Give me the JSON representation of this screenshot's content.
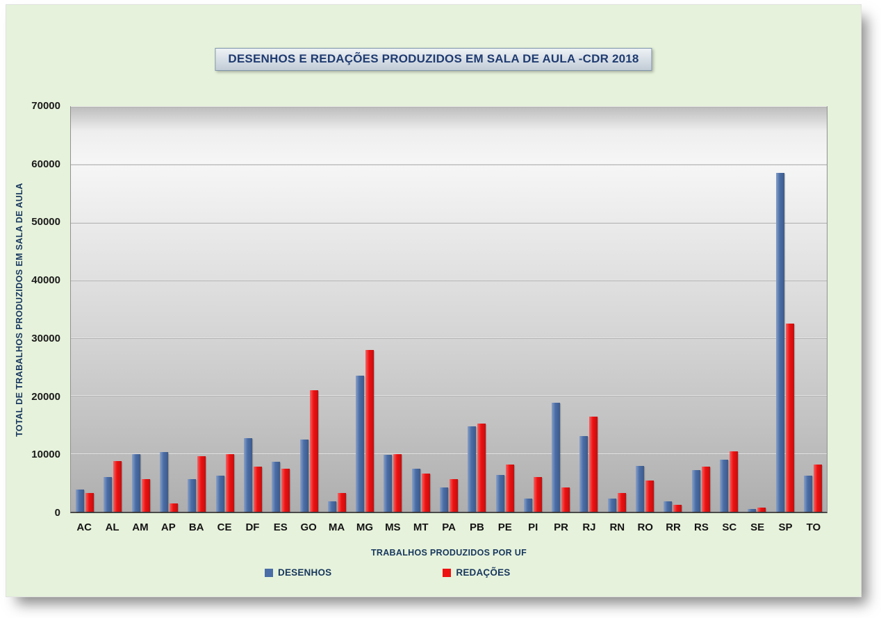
{
  "colors": {
    "canvas_background": "#e6f2db",
    "series_blue": "#4a6da7",
    "series_red": "#ee1111",
    "title_text": "#1f3b70",
    "axis_title_text": "#17375e"
  },
  "chart_data": {
    "type": "bar",
    "title": "DESENHOS E REDAÇÕES PRODUZIDOS EM SALA DE AULA -CDR 2018",
    "xlabel": "TRABALHOS PRODUZIDOS POR UF",
    "ylabel": "TOTAL DE TRABALHOS PRODUZIDOS EM SALA DE AULA",
    "ylim": [
      0,
      70000
    ],
    "ytick_step": 10000,
    "yticks": [
      0,
      10000,
      20000,
      30000,
      40000,
      50000,
      60000,
      70000
    ],
    "grid": true,
    "legend_position": "bottom",
    "categories": [
      "AC",
      "AL",
      "AM",
      "AP",
      "BA",
      "CE",
      "DF",
      "ES",
      "GO",
      "MA",
      "MG",
      "MS",
      "MT",
      "PA",
      "PB",
      "PE",
      "PI",
      "PR",
      "RJ",
      "RN",
      "RO",
      "RR",
      "RS",
      "SC",
      "SE",
      "SP",
      "TO"
    ],
    "series": [
      {
        "name": "DESENHOS",
        "color": "#4a6da7",
        "values": [
          3800,
          6000,
          10000,
          10300,
          5700,
          6300,
          12700,
          8700,
          12500,
          1800,
          23500,
          9800,
          7400,
          4200,
          14800,
          6400,
          2300,
          18800,
          13100,
          2300,
          7900,
          1800,
          7200,
          9000,
          500,
          58600,
          6300
        ]
      },
      {
        "name": "REDAÇÕES",
        "color": "#ee1111",
        "values": [
          3300,
          8800,
          5600,
          1400,
          9600,
          10000,
          7800,
          7500,
          21000,
          3300,
          28000,
          10000,
          6600,
          5600,
          15300,
          8200,
          6000,
          4200,
          16500,
          3200,
          5400,
          1200,
          7800,
          10500,
          700,
          32600,
          8200
        ]
      }
    ]
  }
}
